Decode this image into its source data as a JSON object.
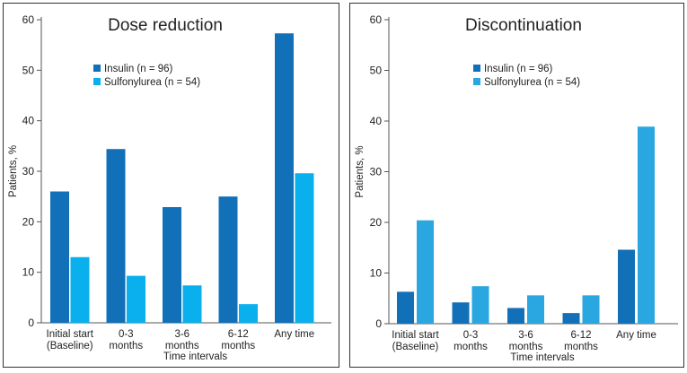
{
  "colors": {
    "insulin": "#1170b8",
    "sulfonylurea": "#1ea9e8"
  },
  "chart_data": [
    {
      "type": "bar",
      "title": "Dose reduction",
      "xlabel": "Time intervals",
      "ylabel": "Patients, %",
      "ylim": [
        0,
        60
      ],
      "yticks": [
        0,
        10,
        20,
        30,
        40,
        50,
        60
      ],
      "categories": [
        [
          "Initial start",
          "(Baseline)"
        ],
        [
          "0-3",
          "months"
        ],
        [
          "3-6",
          "months"
        ],
        [
          "6-12",
          "months"
        ],
        [
          "Any time"
        ]
      ],
      "series": [
        {
          "name": "Insulin (n = 96)",
          "color": "#1170b8",
          "values": [
            26,
            34.4,
            22.9,
            25,
            57.3
          ]
        },
        {
          "name": "Sulfonylurea (n = 54)",
          "color": "#0ab0ee",
          "values": [
            13,
            9.3,
            7.4,
            3.7,
            29.6
          ]
        }
      ],
      "legend": "upper-left"
    },
    {
      "type": "bar",
      "title": "Discontinuation",
      "xlabel": "Time intervals",
      "ylabel": "Patients, %",
      "ylim": [
        0,
        60
      ],
      "yticks": [
        0,
        10,
        20,
        30,
        40,
        50,
        60
      ],
      "categories": [
        [
          "Initial start",
          "(Baseline)"
        ],
        [
          "0-3",
          "months"
        ],
        [
          "3-6",
          "months"
        ],
        [
          "6-12",
          "months"
        ],
        [
          "Any time"
        ]
      ],
      "series": [
        {
          "name": "Insulin (n = 96)",
          "color": "#1170b8",
          "values": [
            6.3,
            4.2,
            3.1,
            2.1,
            14.6
          ]
        },
        {
          "name": "Sulfonylurea (n = 54)",
          "color": "#2aa7e0",
          "values": [
            20.4,
            7.4,
            5.6,
            5.6,
            38.9
          ]
        }
      ],
      "legend": "upper-left"
    }
  ]
}
